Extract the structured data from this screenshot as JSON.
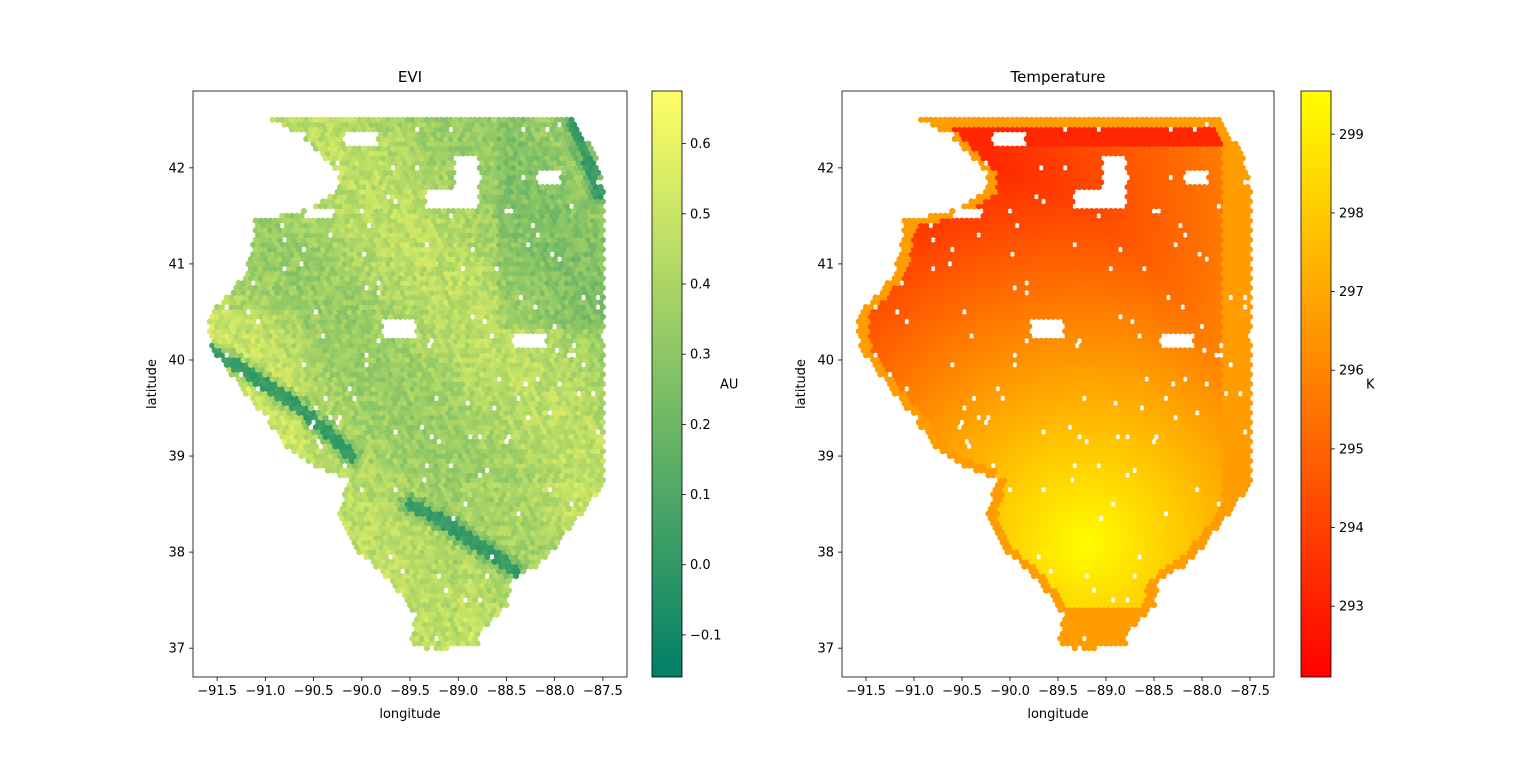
{
  "chart_data": [
    {
      "type": "scatter",
      "title": "EVI",
      "xlabel": "longitude",
      "ylabel": "latitude",
      "xlim": [
        -91.75,
        -87.25
      ],
      "ylim": [
        36.7,
        42.8
      ],
      "xticks": [
        -91.5,
        -91.0,
        -90.5,
        -90.0,
        -89.5,
        -89.0,
        -88.5,
        -88.0,
        -87.5
      ],
      "xtick_labels": [
        "−91.5",
        "−91.0",
        "−90.5",
        "−90.0",
        "−89.5",
        "−89.0",
        "−88.5",
        "−88.0",
        "−87.5"
      ],
      "yticks": [
        37,
        38,
        39,
        40,
        41,
        42
      ],
      "ytick_labels": [
        "37",
        "38",
        "39",
        "40",
        "41",
        "42"
      ],
      "colormap": "summer",
      "colorbar": {
        "label": "AU",
        "vmin": -0.16,
        "vmax": 0.675,
        "ticks": [
          -0.1,
          0.0,
          0.1,
          0.2,
          0.3,
          0.4,
          0.5,
          0.6
        ],
        "tick_labels": [
          "−0.1",
          "0.0",
          "0.1",
          "0.2",
          "0.3",
          "0.4",
          "0.5",
          "0.6"
        ],
        "colors": [
          "#008066",
          "#ffff66"
        ]
      },
      "grid": false,
      "field": "evi",
      "rivers": [
        {
          "lon": [
            -91.55,
            -91.3,
            -91.0,
            -90.7,
            -90.4,
            -90.1
          ],
          "lat": [
            40.1,
            39.95,
            39.75,
            39.55,
            39.3,
            39.0
          ]
        },
        {
          "lon": [
            -89.5,
            -89.2,
            -88.9,
            -88.6,
            -88.4
          ],
          "lat": [
            38.5,
            38.35,
            38.15,
            37.95,
            37.8
          ]
        },
        {
          "lon": [
            -87.8,
            -87.7,
            -87.6,
            -87.55
          ],
          "lat": [
            42.45,
            42.2,
            41.95,
            41.75
          ]
        }
      ]
    },
    {
      "type": "scatter",
      "title": "Temperature",
      "xlabel": "longitude",
      "ylabel": "latitude",
      "xlim": [
        -91.75,
        -87.25
      ],
      "ylim": [
        36.7,
        42.8
      ],
      "xticks": [
        -91.5,
        -91.0,
        -90.5,
        -90.0,
        -89.5,
        -89.0,
        -88.5,
        -88.0,
        -87.5
      ],
      "xtick_labels": [
        "−91.5",
        "−91.0",
        "−90.5",
        "−90.0",
        "−89.5",
        "−89.0",
        "−88.5",
        "−88.0",
        "−87.5"
      ],
      "yticks": [
        37,
        38,
        39,
        40,
        41,
        42
      ],
      "ytick_labels": [
        "37",
        "38",
        "39",
        "40",
        "41",
        "42"
      ],
      "colormap": "autumn",
      "colorbar": {
        "label": "K",
        "vmin": 292.1,
        "vmax": 299.55,
        "ticks": [
          293,
          294,
          295,
          296,
          297,
          298,
          299
        ],
        "tick_labels": [
          "293",
          "294",
          "295",
          "296",
          "297",
          "298",
          "299"
        ],
        "colors": [
          "#ff0000",
          "#ffff00"
        ]
      },
      "grid": false,
      "field": "temperature",
      "border_value": 296.7
    }
  ],
  "region": {
    "outline": [
      [
        -90.95,
        42.5
      ],
      [
        -87.8,
        42.5
      ],
      [
        -87.75,
        42.4
      ],
      [
        -87.55,
        42.1
      ],
      [
        -87.5,
        41.75
      ],
      [
        -87.5,
        39.4
      ],
      [
        -87.5,
        38.7
      ],
      [
        -87.65,
        38.5
      ],
      [
        -87.8,
        38.3
      ],
      [
        -88.0,
        38.05
      ],
      [
        -88.2,
        37.85
      ],
      [
        -88.45,
        37.7
      ],
      [
        -88.5,
        37.45
      ],
      [
        -88.75,
        37.2
      ],
      [
        -88.8,
        37.05
      ],
      [
        -89.25,
        36.97
      ],
      [
        -89.5,
        37.05
      ],
      [
        -89.45,
        37.35
      ],
      [
        -89.6,
        37.55
      ],
      [
        -89.8,
        37.8
      ],
      [
        -90.1,
        38.05
      ],
      [
        -90.25,
        38.35
      ],
      [
        -90.15,
        38.75
      ],
      [
        -90.5,
        38.9
      ],
      [
        -90.75,
        39.05
      ],
      [
        -91.0,
        39.4
      ],
      [
        -91.25,
        39.7
      ],
      [
        -91.55,
        40.1
      ],
      [
        -91.6,
        40.45
      ],
      [
        -91.4,
        40.65
      ],
      [
        -91.2,
        40.9
      ],
      [
        -91.15,
        41.1
      ],
      [
        -91.1,
        41.45
      ],
      [
        -90.6,
        41.55
      ],
      [
        -90.25,
        41.75
      ],
      [
        -90.25,
        41.95
      ],
      [
        -90.5,
        42.2
      ],
      [
        -90.65,
        42.35
      ]
    ],
    "holes": [
      [
        -89.35,
        41.78,
        -89.05,
        41.55
      ],
      [
        -89.05,
        42.1,
        -88.8,
        41.55
      ],
      [
        -88.2,
        41.95,
        -87.95,
        41.8
      ],
      [
        -88.45,
        40.25,
        -88.1,
        40.12
      ],
      [
        -89.8,
        40.4,
        -89.45,
        40.22
      ],
      [
        -90.6,
        41.55,
        -90.3,
        41.45
      ],
      [
        -90.2,
        42.35,
        -89.85,
        42.2
      ]
    ]
  }
}
